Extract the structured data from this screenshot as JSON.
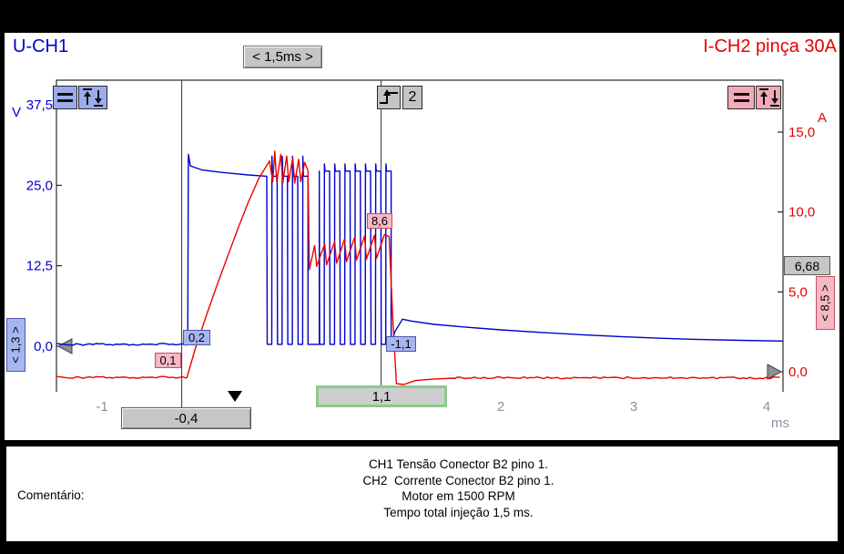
{
  "header": {
    "ch1_label": "U-CH1",
    "timebase_label": "< 1,5ms >",
    "ch2_label": "I-CH2 pinça 30A"
  },
  "toolbar": {
    "trigger_source": "2"
  },
  "readouts": {
    "cursor1_ch1_value": "0,2",
    "cursor1_ch2_value": "0,1",
    "cursor2_ch1_value": "-1,1",
    "cursor2_ch2_value": "8,6",
    "cursor1_time": "-0,4",
    "delta_time": "1,1",
    "right_value": "6,68",
    "ch1_handle": "< 1,3 >",
    "ch2_handle": "< 8,5 >"
  },
  "comment": {
    "label": "Comentário:",
    "lines": [
      "CH1 Tensão Conector B2 pino 1.",
      "CH2  Corrente Conector B2 pino 1.",
      "Motor em 1500 RPM",
      "Tempo total injeção 1,5 ms."
    ]
  },
  "chart_data": {
    "type": "line",
    "title": "Injector voltage and current vs time",
    "x_unit_label": "ms",
    "x_ticks": [
      {
        "t": -1,
        "label": "-1"
      },
      {
        "t": 2,
        "label": "2"
      },
      {
        "t": 3,
        "label": "3"
      },
      {
        "t": 4,
        "label": "4"
      }
    ],
    "x_range": [
      -1.343,
      4.12
    ],
    "y_left": {
      "label": "V",
      "color": "#0000cc",
      "ticks": [
        {
          "v": 37.5,
          "label": "37,5"
        },
        {
          "v": 25,
          "label": "25,0"
        },
        {
          "v": 12.5,
          "label": "12,5"
        },
        {
          "v": 0,
          "label": "0,0"
        }
      ]
    },
    "y_right": {
      "label": "A",
      "color": "#e60000",
      "ticks": [
        {
          "v": 15,
          "label": "15,0"
        },
        {
          "v": 10,
          "label": "10,0"
        },
        {
          "v": 5,
          "label": "5,0"
        },
        {
          "v": 0,
          "label": "0,0"
        }
      ]
    },
    "cursors": [
      {
        "t": -0.4,
        "label": "-0,4"
      },
      {
        "t": 1.1,
        "label": "1,1"
      }
    ],
    "trigger_t": 0,
    "series": [
      {
        "name": "U-CH1",
        "color": "#0000cc",
        "axis": "left",
        "unit": "V",
        "segments": [
          {
            "type": "flat",
            "t0": -1.343,
            "t1": -0.355,
            "v": 0.3,
            "noise": 0.3
          },
          {
            "type": "points",
            "pts": [
              [
                -0.355,
                0.3
              ],
              [
                -0.35,
                29.8
              ],
              [
                -0.335,
                28.0
              ],
              [
                -0.25,
                27.4
              ],
              [
                -0.1,
                27.0
              ],
              [
                0.1,
                26.6
              ],
              [
                0.24,
                26.4
              ]
            ]
          },
          {
            "type": "pulses",
            "t0": 0.24,
            "t1": 0.55,
            "n": 4,
            "high": 26.4,
            "low": 0.3,
            "spike": 29.5
          },
          {
            "type": "points",
            "pts": [
              [
                0.55,
                0.3
              ],
              [
                0.635,
                0.3
              ]
            ]
          },
          {
            "type": "pulses",
            "t0": 0.635,
            "t1": 1.175,
            "n": 7,
            "high": 27.2,
            "low": 0.3,
            "spike": 28.3
          },
          {
            "type": "points",
            "pts": [
              [
                1.175,
                0.3
              ],
              [
                1.205,
                2.3
              ],
              [
                1.26,
                4.2
              ],
              [
                1.33,
                3.9
              ],
              [
                1.5,
                3.4
              ],
              [
                1.75,
                2.95
              ],
              [
                2.0,
                2.55
              ],
              [
                2.3,
                2.15
              ],
              [
                2.6,
                1.8
              ],
              [
                2.9,
                1.5
              ],
              [
                3.2,
                1.25
              ],
              [
                3.5,
                1.05
              ],
              [
                3.8,
                0.92
              ],
              [
                4.12,
                0.8
              ]
            ]
          }
        ]
      },
      {
        "name": "I-CH2",
        "color": "#ee0000",
        "axis": "right",
        "unit": "A",
        "segments": [
          {
            "type": "flat",
            "t0": -1.343,
            "t1": -0.36,
            "v": -0.35,
            "noise": 0.12
          },
          {
            "type": "points",
            "pts": [
              [
                -0.36,
                -0.35
              ],
              [
                -0.3,
                1.4
              ],
              [
                -0.22,
                3.4
              ],
              [
                -0.14,
                5.3
              ],
              [
                -0.06,
                7.1
              ],
              [
                0.02,
                8.9
              ],
              [
                0.1,
                10.6
              ],
              [
                0.18,
                12.1
              ],
              [
                0.26,
                13.2
              ]
            ]
          },
          {
            "type": "points",
            "pts": [
              [
                0.285,
                11.9
              ],
              [
                0.3,
                13.8
              ],
              [
                0.315,
                11.9
              ],
              [
                0.345,
                13.6
              ],
              [
                0.36,
                11.8
              ],
              [
                0.39,
                13.5
              ],
              [
                0.405,
                11.9
              ],
              [
                0.435,
                13.4
              ],
              [
                0.45,
                11.8
              ],
              [
                0.48,
                13.3
              ],
              [
                0.495,
                11.9
              ],
              [
                0.525,
                13.1
              ],
              [
                0.55,
                12.6
              ]
            ]
          },
          {
            "type": "points",
            "pts": [
              [
                0.56,
                6.4
              ],
              [
                0.6,
                7.9
              ],
              [
                0.615,
                6.6
              ],
              [
                0.675,
                8.0
              ],
              [
                0.69,
                6.7
              ],
              [
                0.75,
                8.15
              ],
              [
                0.765,
                6.8
              ],
              [
                0.825,
                8.3
              ],
              [
                0.84,
                6.9
              ],
              [
                0.9,
                8.4
              ],
              [
                0.915,
                7.0
              ],
              [
                0.975,
                8.5
              ],
              [
                0.99,
                7.05
              ],
              [
                1.05,
                8.55
              ],
              [
                1.065,
                7.1
              ],
              [
                1.125,
                8.6
              ],
              [
                1.16,
                8.45
              ]
            ]
          },
          {
            "type": "points",
            "pts": [
              [
                1.19,
                3.0
              ],
              [
                1.215,
                -0.75
              ],
              [
                1.27,
                -0.8
              ],
              [
                1.36,
                -0.55
              ],
              [
                1.5,
                -0.45
              ],
              [
                1.65,
                -0.4
              ]
            ]
          },
          {
            "type": "flat",
            "t0": 1.65,
            "t1": 4.12,
            "v": -0.38,
            "noise": 0.12
          }
        ]
      }
    ]
  }
}
